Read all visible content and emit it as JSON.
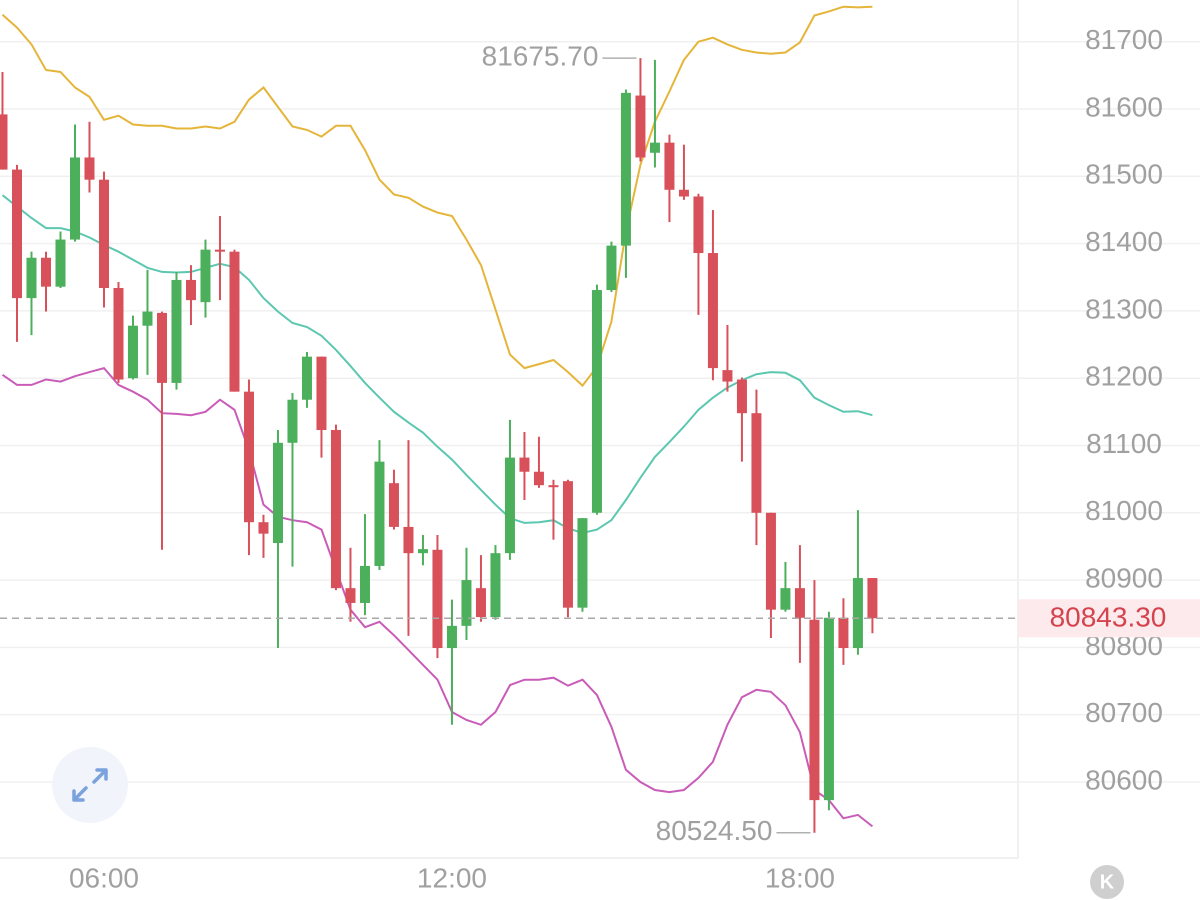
{
  "chart_data": {
    "type": "candlestick",
    "x": [
      4.25,
      4.5,
      4.75,
      5,
      5.25,
      5.5,
      5.75,
      6,
      6.25,
      6.5,
      6.75,
      7,
      7.25,
      7.5,
      7.75,
      8,
      8.25,
      8.5,
      8.75,
      9,
      9.25,
      9.5,
      9.75,
      10,
      10.25,
      10.5,
      10.75,
      11,
      11.25,
      11.5,
      11.75,
      12,
      12.25,
      12.5,
      12.75,
      13,
      13.25,
      13.5,
      13.75,
      14,
      14.25,
      14.5,
      14.75,
      15,
      15.25,
      15.5,
      15.75,
      16,
      16.25,
      16.5,
      16.75,
      17,
      17.25,
      17.5,
      17.75,
      18,
      18.25,
      18.5,
      18.75,
      19,
      19.25
    ],
    "open": [
      81592,
      81510,
      81319,
      81379,
      81336,
      81406,
      81528,
      81495,
      81334,
      81200,
      81278,
      81297,
      81193,
      81346,
      81313,
      81391,
      81388,
      81180,
      80986,
      80955,
      81104,
      81168,
      81232,
      81123,
      80888,
      80866,
      80921,
      81044,
      80979,
      80940,
      80945,
      80799,
      80832,
      80888,
      80845,
      80940,
      81082,
      81061,
      81041,
      81047,
      80859,
      81000,
      81331,
      81397,
      81620,
      81535,
      81550,
      81480,
      81470,
      81386,
      81212,
      81198,
      81148,
      81000,
      80856,
      80888,
      80841,
      80573,
      80844,
      80799,
      80903
    ],
    "high": [
      81655,
      81517,
      81388,
      81388,
      81418,
      81577,
      81581,
      81507,
      81343,
      81293,
      81361,
      81299,
      81358,
      81368,
      81406,
      81441,
      81391,
      81198,
      80997,
      81123,
      81178,
      81239,
      81232,
      81131,
      80948,
      80998,
      81108,
      81064,
      81108,
      80967,
      80967,
      80871,
      80948,
      80937,
      80952,
      81138,
      81120,
      81113,
      81049,
      81049,
      80992,
      81339,
      81403,
      81629,
      81675.7,
      81673,
      81562,
      81547,
      81474,
      81450,
      81279,
      81201,
      81183,
      81000,
      80927,
      80952,
      80900,
      80853,
      80873,
      81004,
      80903
    ],
    "low": [
      81510,
      81254,
      81264,
      81299,
      81334,
      81403,
      81476,
      81305,
      81193,
      81198,
      81205,
      80945,
      81183,
      81279,
      81290,
      81316,
      81180,
      80937,
      80933,
      80799,
      80920,
      81156,
      81082,
      80885,
      80838,
      80848,
      80915,
      80975,
      80817,
      80922,
      80784,
      80685,
      80811,
      80838,
      80841,
      80930,
      81019,
      81037,
      80960,
      80845,
      80853,
      80997,
      81328,
      81349,
      81522,
      81513,
      81432,
      81465,
      81294,
      81197,
      81180,
      81076,
      80952,
      80814,
      80853,
      80777,
      80524.5,
      80558,
      80774,
      80789,
      80821
    ],
    "close": [
      81510,
      81319,
      81379,
      81336,
      81406,
      81528,
      81495,
      81334,
      81198,
      81278,
      81299,
      81193,
      81346,
      81316,
      81391,
      81388,
      81180,
      80986,
      80969,
      81104,
      81168,
      81232,
      81123,
      80888,
      80866,
      80921,
      81076,
      80979,
      80940,
      80946,
      80799,
      80832,
      80900,
      80845,
      80940,
      81082,
      81061,
      81041,
      81038,
      80859,
      80992,
      81331,
      81397,
      81624,
      81528,
      81550,
      81480,
      81470,
      81386,
      81215,
      81195,
      81148,
      81000,
      80856,
      80888,
      80844,
      80573,
      80844,
      80799,
      80903,
      80843.3
    ],
    "up_color": "#4caf5c",
    "down_color": "#d8505a",
    "series": [
      {
        "color": "#e5b53a",
        "values": [
          81740,
          81721,
          81696,
          81658,
          81655,
          81632,
          81618,
          81584,
          81590,
          81577,
          81575,
          81575,
          81571,
          81571,
          81574,
          81571,
          81581,
          81614,
          81632,
          81603,
          81574,
          81569,
          81559,
          81575,
          81575,
          81539,
          81495,
          81473,
          81468,
          81455,
          81446,
          81441,
          81406,
          81368,
          81302,
          81235,
          81215,
          81221,
          81227,
          81209,
          81189,
          81217,
          81284,
          81418,
          81517,
          81581,
          81626,
          81673,
          81700,
          81706,
          81696,
          81688,
          81684,
          81682,
          81684,
          81699,
          81739,
          81745,
          81752,
          81751,
          81752
        ]
      },
      {
        "color": "#5cc7b0",
        "values": [
          81472,
          81455,
          81438,
          81423,
          81423,
          81418,
          81409,
          81398,
          81388,
          81376,
          81364,
          81358,
          81357,
          81358,
          81364,
          81370,
          81365,
          81346,
          81319,
          81299,
          81282,
          81276,
          81263,
          81242,
          81218,
          81193,
          81171,
          81150,
          81134,
          81119,
          81098,
          81079,
          81056,
          81034,
          81012,
          80992,
          80985,
          80986,
          80989,
          80977,
          80970,
          80975,
          80989,
          81019,
          81052,
          81083,
          81105,
          81128,
          81153,
          81171,
          81186,
          81197,
          81206,
          81209,
          81208,
          81197,
          81171,
          81160,
          81150,
          81151,
          81145
        ]
      },
      {
        "color": "#c95cb8",
        "values": [
          81205,
          81190,
          81190,
          81198,
          81195,
          81203,
          81209,
          81215,
          81190,
          81180,
          81168,
          81148,
          81147,
          81145,
          81150,
          81168,
          81153,
          81093,
          81012,
          80994,
          80989,
          80986,
          80975,
          80915,
          80856,
          80830,
          80838,
          80818,
          80796,
          80774,
          80752,
          80704,
          80692,
          80685,
          80704,
          80744,
          80752,
          80752,
          80755,
          80743,
          80752,
          80729,
          80682,
          80618,
          80600,
          80588,
          80585,
          80588,
          80606,
          80630,
          80685,
          80726,
          80737,
          80734,
          80714,
          80674,
          80588,
          80573,
          80546,
          80551,
          80534
        ]
      }
    ],
    "xlim": [
      4.207,
      21.76
    ],
    "xticks": [
      {
        "value": 6,
        "label": "06:00"
      },
      {
        "value": 12,
        "label": "12:00"
      },
      {
        "value": 18,
        "label": "18:00"
      }
    ],
    "ylim": [
      80487,
      81762
    ],
    "yticks": [
      80600,
      80700,
      80800,
      80900,
      81000,
      81100,
      81200,
      81300,
      81400,
      81500,
      81600,
      81700
    ],
    "grid": true,
    "max_label": {
      "value": 81675.7,
      "label": "81675.70"
    },
    "min_label": {
      "value": 80524.5,
      "label": "80524.50"
    },
    "last_price": {
      "value": 80843.3,
      "label": "80843.30"
    },
    "badge": "K"
  }
}
